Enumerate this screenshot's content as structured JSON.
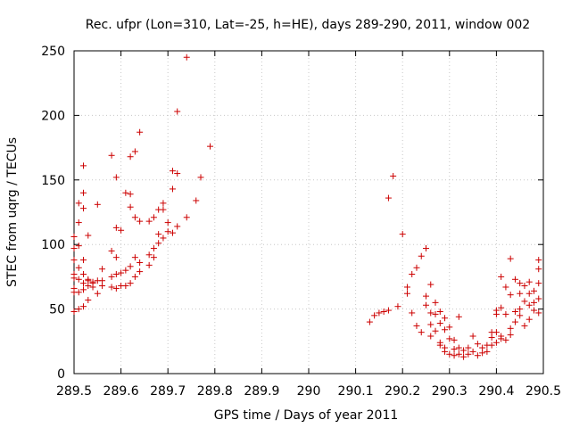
{
  "chart_data": {
    "type": "scatter",
    "title": "Rec. ufpr (Lon=310, Lat=-25, h=HE), days 289-290, 2011, window 002",
    "xlabel": "GPS time / Days of year 2011",
    "ylabel": "STEC from uqrg / TECUs",
    "xlim": [
      289.5,
      290.5
    ],
    "ylim": [
      0,
      250
    ],
    "xticks": [
      289.5,
      289.6,
      289.7,
      289.8,
      289.9,
      290,
      290.1,
      290.2,
      290.3,
      290.4,
      290.5
    ],
    "xtick_labels": [
      "289.5",
      "289.6",
      "289.7",
      "289.8",
      "289.9",
      "290",
      "290.1",
      "290.2",
      "290.3",
      "290.4",
      "290.5"
    ],
    "yticks": [
      0,
      50,
      100,
      150,
      200,
      250
    ],
    "ytick_labels": [
      "0",
      "50",
      "100",
      "150",
      "200",
      "250"
    ],
    "grid": true,
    "marker": "+",
    "color": "#cc0000",
    "series": [
      {
        "name": "STEC",
        "points": [
          [
            289.5,
            106
          ],
          [
            289.5,
            97
          ],
          [
            289.5,
            88
          ],
          [
            289.5,
            77
          ],
          [
            289.5,
            74
          ],
          [
            289.5,
            66
          ],
          [
            289.5,
            63
          ],
          [
            289.5,
            48
          ],
          [
            289.51,
            132
          ],
          [
            289.51,
            117
          ],
          [
            289.51,
            99
          ],
          [
            289.51,
            82
          ],
          [
            289.51,
            73
          ],
          [
            289.51,
            63
          ],
          [
            289.51,
            50
          ],
          [
            289.52,
            161
          ],
          [
            289.52,
            140
          ],
          [
            289.52,
            128
          ],
          [
            289.52,
            88
          ],
          [
            289.52,
            77
          ],
          [
            289.52,
            70
          ],
          [
            289.52,
            65
          ],
          [
            289.52,
            52
          ],
          [
            289.53,
            107
          ],
          [
            289.53,
            73
          ],
          [
            289.53,
            72
          ],
          [
            289.53,
            68
          ],
          [
            289.53,
            57
          ],
          [
            289.54,
            71
          ],
          [
            289.54,
            70
          ],
          [
            289.54,
            67
          ],
          [
            289.55,
            131
          ],
          [
            289.55,
            72
          ],
          [
            289.55,
            62
          ],
          [
            289.56,
            81
          ],
          [
            289.56,
            72
          ],
          [
            289.56,
            68
          ],
          [
            289.58,
            169
          ],
          [
            289.58,
            95
          ],
          [
            289.58,
            75
          ],
          [
            289.58,
            67
          ],
          [
            289.59,
            152
          ],
          [
            289.59,
            113
          ],
          [
            289.59,
            90
          ],
          [
            289.59,
            77
          ],
          [
            289.59,
            66
          ],
          [
            289.6,
            111
          ],
          [
            289.6,
            78
          ],
          [
            289.6,
            68
          ],
          [
            289.61,
            140
          ],
          [
            289.61,
            80
          ],
          [
            289.61,
            68
          ],
          [
            289.62,
            168
          ],
          [
            289.62,
            139
          ],
          [
            289.62,
            129
          ],
          [
            289.62,
            83
          ],
          [
            289.62,
            70
          ],
          [
            289.63,
            172
          ],
          [
            289.63,
            121
          ],
          [
            289.63,
            90
          ],
          [
            289.63,
            75
          ],
          [
            289.64,
            118
          ],
          [
            289.64,
            79
          ],
          [
            289.64,
            187
          ],
          [
            289.64,
            86
          ],
          [
            289.66,
            118
          ],
          [
            289.66,
            92
          ],
          [
            289.66,
            84
          ],
          [
            289.67,
            121
          ],
          [
            289.67,
            97
          ],
          [
            289.67,
            90
          ],
          [
            289.68,
            127
          ],
          [
            289.68,
            108
          ],
          [
            289.68,
            101
          ],
          [
            289.69,
            127
          ],
          [
            289.69,
            132
          ],
          [
            289.69,
            105
          ],
          [
            289.7,
            110
          ],
          [
            289.7,
            117
          ],
          [
            289.71,
            157
          ],
          [
            289.71,
            143
          ],
          [
            289.71,
            109
          ],
          [
            289.72,
            203
          ],
          [
            289.72,
            155
          ],
          [
            289.72,
            114
          ],
          [
            289.74,
            245
          ],
          [
            289.74,
            121
          ],
          [
            289.76,
            134
          ],
          [
            289.77,
            152
          ],
          [
            289.79,
            176
          ],
          [
            290.13,
            40
          ],
          [
            290.14,
            45
          ],
          [
            290.15,
            47
          ],
          [
            290.16,
            48
          ],
          [
            290.17,
            49
          ],
          [
            290.17,
            136
          ],
          [
            290.18,
            153
          ],
          [
            290.19,
            52
          ],
          [
            290.2,
            108
          ],
          [
            290.21,
            67
          ],
          [
            290.21,
            62
          ],
          [
            290.22,
            47
          ],
          [
            290.22,
            77
          ],
          [
            290.23,
            82
          ],
          [
            290.23,
            37
          ],
          [
            290.24,
            91
          ],
          [
            290.24,
            32
          ],
          [
            290.25,
            97
          ],
          [
            290.25,
            60
          ],
          [
            290.25,
            53
          ],
          [
            290.26,
            69
          ],
          [
            290.26,
            47
          ],
          [
            290.26,
            38
          ],
          [
            290.26,
            29
          ],
          [
            290.27,
            55
          ],
          [
            290.27,
            46
          ],
          [
            290.27,
            33
          ],
          [
            290.28,
            48
          ],
          [
            290.28,
            39
          ],
          [
            290.28,
            24
          ],
          [
            290.28,
            22
          ],
          [
            290.29,
            43
          ],
          [
            290.29,
            34
          ],
          [
            290.29,
            20
          ],
          [
            290.29,
            17
          ],
          [
            290.3,
            36
          ],
          [
            290.3,
            27
          ],
          [
            290.3,
            15
          ],
          [
            290.31,
            26
          ],
          [
            290.31,
            19
          ],
          [
            290.31,
            14
          ],
          [
            290.32,
            44
          ],
          [
            290.32,
            20
          ],
          [
            290.32,
            15
          ],
          [
            290.33,
            18
          ],
          [
            290.33,
            13
          ],
          [
            290.34,
            20
          ],
          [
            290.34,
            15
          ],
          [
            290.35,
            29
          ],
          [
            290.35,
            17
          ],
          [
            290.36,
            23
          ],
          [
            290.36,
            14
          ],
          [
            290.37,
            20
          ],
          [
            290.37,
            16
          ],
          [
            290.38,
            22
          ],
          [
            290.38,
            17
          ],
          [
            290.39,
            28
          ],
          [
            290.39,
            22
          ],
          [
            290.39,
            32
          ],
          [
            290.4,
            49
          ],
          [
            290.4,
            46
          ],
          [
            290.4,
            32
          ],
          [
            290.4,
            24
          ],
          [
            290.41,
            75
          ],
          [
            290.41,
            51
          ],
          [
            290.41,
            29
          ],
          [
            290.41,
            27
          ],
          [
            290.42,
            67
          ],
          [
            290.42,
            46
          ],
          [
            290.42,
            26
          ],
          [
            290.43,
            89
          ],
          [
            290.43,
            61
          ],
          [
            290.43,
            35
          ],
          [
            290.43,
            30
          ],
          [
            290.44,
            73
          ],
          [
            290.44,
            48
          ],
          [
            290.44,
            40
          ],
          [
            290.45,
            70
          ],
          [
            290.45,
            62
          ],
          [
            290.45,
            50
          ],
          [
            290.45,
            45
          ],
          [
            290.46,
            68
          ],
          [
            290.46,
            56
          ],
          [
            290.46,
            37
          ],
          [
            290.47,
            71
          ],
          [
            290.47,
            62
          ],
          [
            290.47,
            53
          ],
          [
            290.47,
            42
          ],
          [
            290.48,
            64
          ],
          [
            290.48,
            55
          ],
          [
            290.48,
            49
          ],
          [
            290.49,
            88
          ],
          [
            290.49,
            81
          ],
          [
            290.49,
            70
          ],
          [
            290.49,
            58
          ],
          [
            290.49,
            47
          ]
        ]
      }
    ]
  }
}
